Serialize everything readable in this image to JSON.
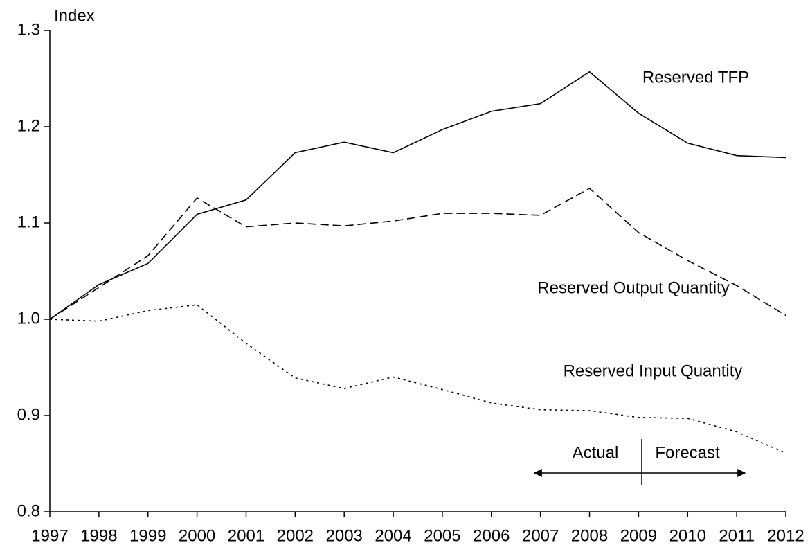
{
  "chart_data": {
    "type": "line",
    "y_label": "Index",
    "categories": [
      "1997",
      "1998",
      "1999",
      "2000",
      "2001",
      "2002",
      "2003",
      "2004",
      "2005",
      "2006",
      "2007",
      "2008",
      "2009",
      "2010",
      "2011",
      "2012"
    ],
    "series": [
      {
        "name": "Reserved TFP",
        "color": "#000000",
        "style": "solid",
        "values": [
          1.0,
          1.036,
          1.058,
          1.109,
          1.124,
          1.173,
          1.184,
          1.173,
          1.197,
          1.216,
          1.224,
          1.257,
          1.214,
          1.183,
          1.17,
          1.168
        ]
      },
      {
        "name": "Reserved Output Quantity",
        "color": "#000000",
        "style": "dashed",
        "values": [
          1.0,
          1.033,
          1.066,
          1.126,
          1.096,
          1.1,
          1.097,
          1.102,
          1.11,
          1.11,
          1.108,
          1.136,
          1.09,
          1.061,
          1.035,
          1.004
        ]
      },
      {
        "name": "Reserved Input Quantity",
        "color": "#000000",
        "style": "dotted",
        "values": [
          1.0,
          0.998,
          1.009,
          1.015,
          0.975,
          0.939,
          0.928,
          0.94,
          0.927,
          0.913,
          0.906,
          0.905,
          0.898,
          0.897,
          0.883,
          0.861
        ]
      }
    ],
    "annotations": [
      "Actual",
      "Forecast"
    ],
    "ylim": [
      0.8,
      1.3
    ],
    "yticks": [
      0.8,
      0.9,
      {
        "value": 1.0,
        "label": "1.0"
      },
      1.1,
      1.2,
      1.3
    ],
    "grid": false
  }
}
